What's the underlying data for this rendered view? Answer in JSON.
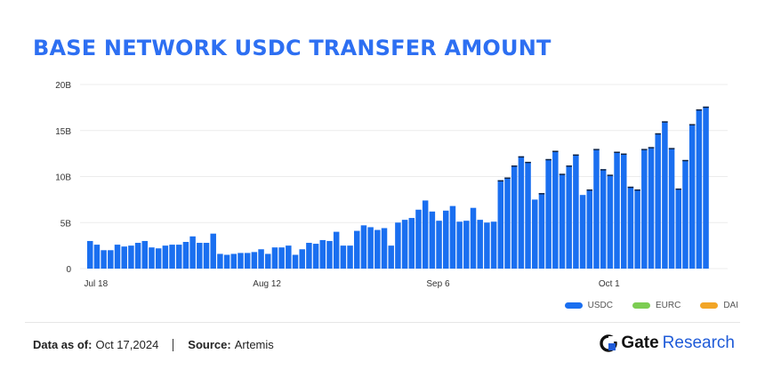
{
  "header": {
    "title": "BASE NETWORK USDC TRANSFER AMOUNT"
  },
  "footer": {
    "data_label": "Data as of:",
    "data_value": "Oct 17,2024",
    "source_label": "Source:",
    "source_value": "Artemis",
    "brand_primary": "Gate",
    "brand_secondary": "Research"
  },
  "colors": {
    "usdc": "#1a6ff0",
    "eurc": "#7ccd52",
    "dai": "#f2a526",
    "title": "#2d6ff2"
  },
  "legend": [
    {
      "name": "USDC",
      "color": "#1a6ff0"
    },
    {
      "name": "EURC",
      "color": "#7ccd52"
    },
    {
      "name": "DAI",
      "color": "#f2a526"
    }
  ],
  "chart_data": {
    "type": "bar",
    "stacked": true,
    "title": "BASE NETWORK USDC TRANSFER AMOUNT",
    "unit": "B",
    "ylim": [
      0,
      20
    ],
    "yticks": [
      0,
      5,
      10,
      15,
      20
    ],
    "ytick_labels": [
      "0",
      "5B",
      "10B",
      "15B",
      "20B"
    ],
    "grid": true,
    "legend_position": "bottom-right",
    "x_start": "Jul 18",
    "x_tick_labels": [
      {
        "label": "Jul 18",
        "index": 0
      },
      {
        "label": "Aug 12",
        "index": 25
      },
      {
        "label": "Sep 6",
        "index": 50
      },
      {
        "label": "Oct 1",
        "index": 75
      }
    ],
    "series": [
      {
        "name": "USDC",
        "values": [
          3.0,
          2.6,
          2.0,
          2.0,
          2.6,
          2.4,
          2.5,
          2.8,
          3.0,
          2.3,
          2.2,
          2.5,
          2.6,
          2.6,
          2.9,
          3.5,
          2.8,
          2.8,
          3.8,
          1.6,
          1.5,
          1.6,
          1.7,
          1.7,
          1.8,
          2.1,
          1.6,
          2.3,
          2.3,
          2.5,
          1.5,
          2.1,
          2.8,
          2.7,
          3.1,
          3.0,
          4.0,
          2.5,
          2.5,
          4.1,
          4.7,
          4.5,
          4.2,
          4.4,
          2.5,
          5.0,
          5.3,
          5.5,
          6.4,
          7.4,
          6.2,
          5.2,
          6.3,
          6.8,
          5.1,
          5.2,
          6.6,
          5.3,
          5.0,
          5.1,
          9.6,
          9.9,
          11.2,
          12.2,
          11.6,
          7.5,
          8.2,
          11.9,
          12.8,
          10.3,
          11.2,
          12.4,
          8.0,
          8.6,
          13.0,
          10.8,
          10.2,
          12.7,
          12.5,
          8.9,
          8.6,
          13.0,
          13.2,
          14.7,
          16.0,
          13.1,
          8.7,
          11.8,
          15.7,
          17.3,
          17.6
        ]
      },
      {
        "name": "EURC",
        "values": [
          0,
          0,
          0,
          0,
          0,
          0,
          0,
          0,
          0,
          0,
          0,
          0,
          0,
          0,
          0,
          0,
          0,
          0,
          0,
          0,
          0,
          0,
          0,
          0,
          0,
          0,
          0,
          0,
          0,
          0,
          0,
          0,
          0,
          0,
          0,
          0,
          0,
          0,
          0,
          0,
          0,
          0,
          0,
          0,
          0,
          0,
          0,
          0,
          0,
          0,
          0,
          0,
          0,
          0,
          0,
          0,
          0,
          0,
          0,
          0,
          0,
          0,
          0,
          0,
          0,
          0,
          0,
          0,
          0,
          0,
          0,
          0,
          0,
          0,
          0,
          0,
          0,
          0,
          0,
          0,
          0,
          0,
          0,
          0,
          0,
          0,
          0,
          0,
          0,
          0,
          0
        ]
      },
      {
        "name": "DAI",
        "values": [
          0,
          0,
          0,
          0,
          0,
          0,
          0,
          0,
          0,
          0,
          0,
          0,
          0,
          0,
          0,
          0,
          0,
          0,
          0,
          0,
          0,
          0,
          0,
          0,
          0,
          0,
          0,
          0,
          0,
          0,
          0,
          0,
          0,
          0,
          0,
          0,
          0,
          0,
          0,
          0,
          0,
          0,
          0,
          0,
          0,
          0,
          0,
          0,
          0,
          0,
          0,
          0,
          0,
          0,
          0,
          0,
          0,
          0,
          0,
          0,
          0,
          0,
          0,
          0,
          0,
          0,
          0,
          0,
          0,
          0,
          0,
          0,
          0,
          0,
          0,
          0,
          0,
          0,
          0,
          0,
          0,
          0,
          0,
          0,
          0,
          0,
          0,
          0,
          0,
          0,
          0
        ]
      }
    ]
  }
}
